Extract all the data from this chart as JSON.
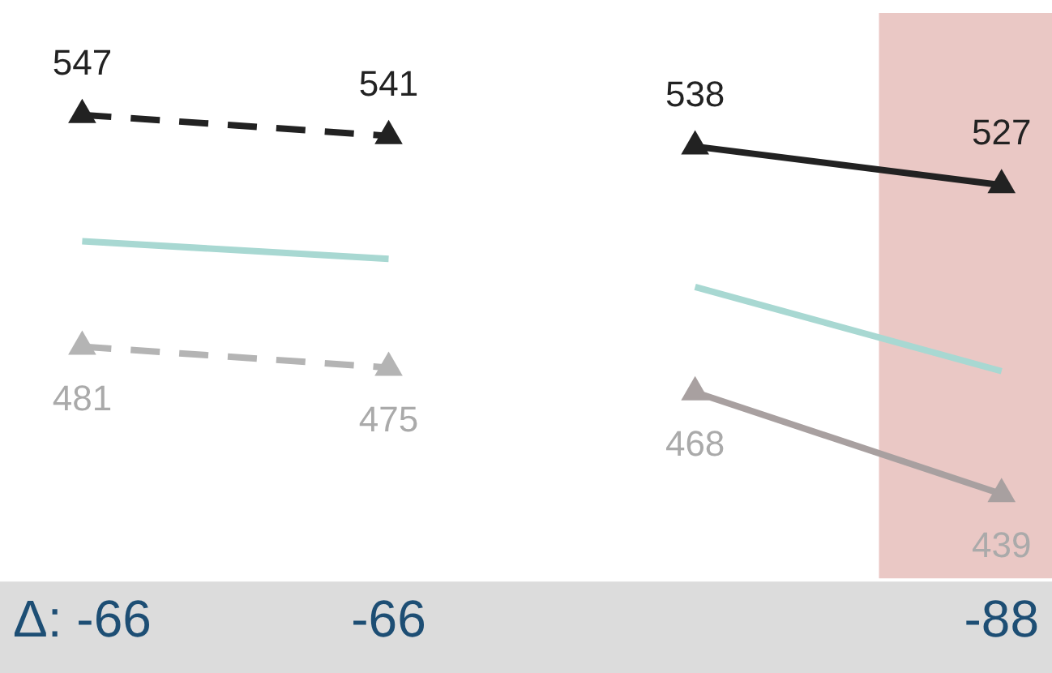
{
  "chart_data": {
    "type": "line",
    "categories": [
      "Δ: -66",
      "-66",
      null,
      "-88"
    ],
    "series": [
      {
        "color": "#222222",
        "line_style": "dashed",
        "values": [
          547,
          541,
          null,
          null
        ],
        "value_labels": [
          "547",
          "541",
          null,
          null
        ]
      },
      {
        "color": "#222222",
        "line_style": "solid",
        "values": [
          null,
          null,
          538,
          527
        ],
        "value_labels": [
          null,
          null,
          "538",
          "527"
        ]
      },
      {
        "color": "#a8d8d2",
        "line_style": "solid",
        "marker": "none",
        "values": [
          511,
          506,
          null,
          null
        ]
      },
      {
        "color": "#a8d8d2",
        "line_style": "solid",
        "marker": "none",
        "values": [
          null,
          null,
          498,
          474
        ]
      },
      {
        "color": "#b4b4b4",
        "line_style": "dashed",
        "values": [
          481,
          475,
          null,
          null
        ],
        "value_labels": [
          "481",
          "475",
          null,
          null
        ]
      },
      {
        "color": "#a8a0a0",
        "line_style": "solid",
        "values": [
          null,
          null,
          468,
          439
        ],
        "value_labels": [
          null,
          null,
          "468",
          "439"
        ]
      }
    ],
    "bands": [
      {
        "axis": "x",
        "from": "-88",
        "to": "-88",
        "color": "#e3b5b1"
      }
    ],
    "marker": "triangle",
    "grid": false,
    "legend": false
  }
}
